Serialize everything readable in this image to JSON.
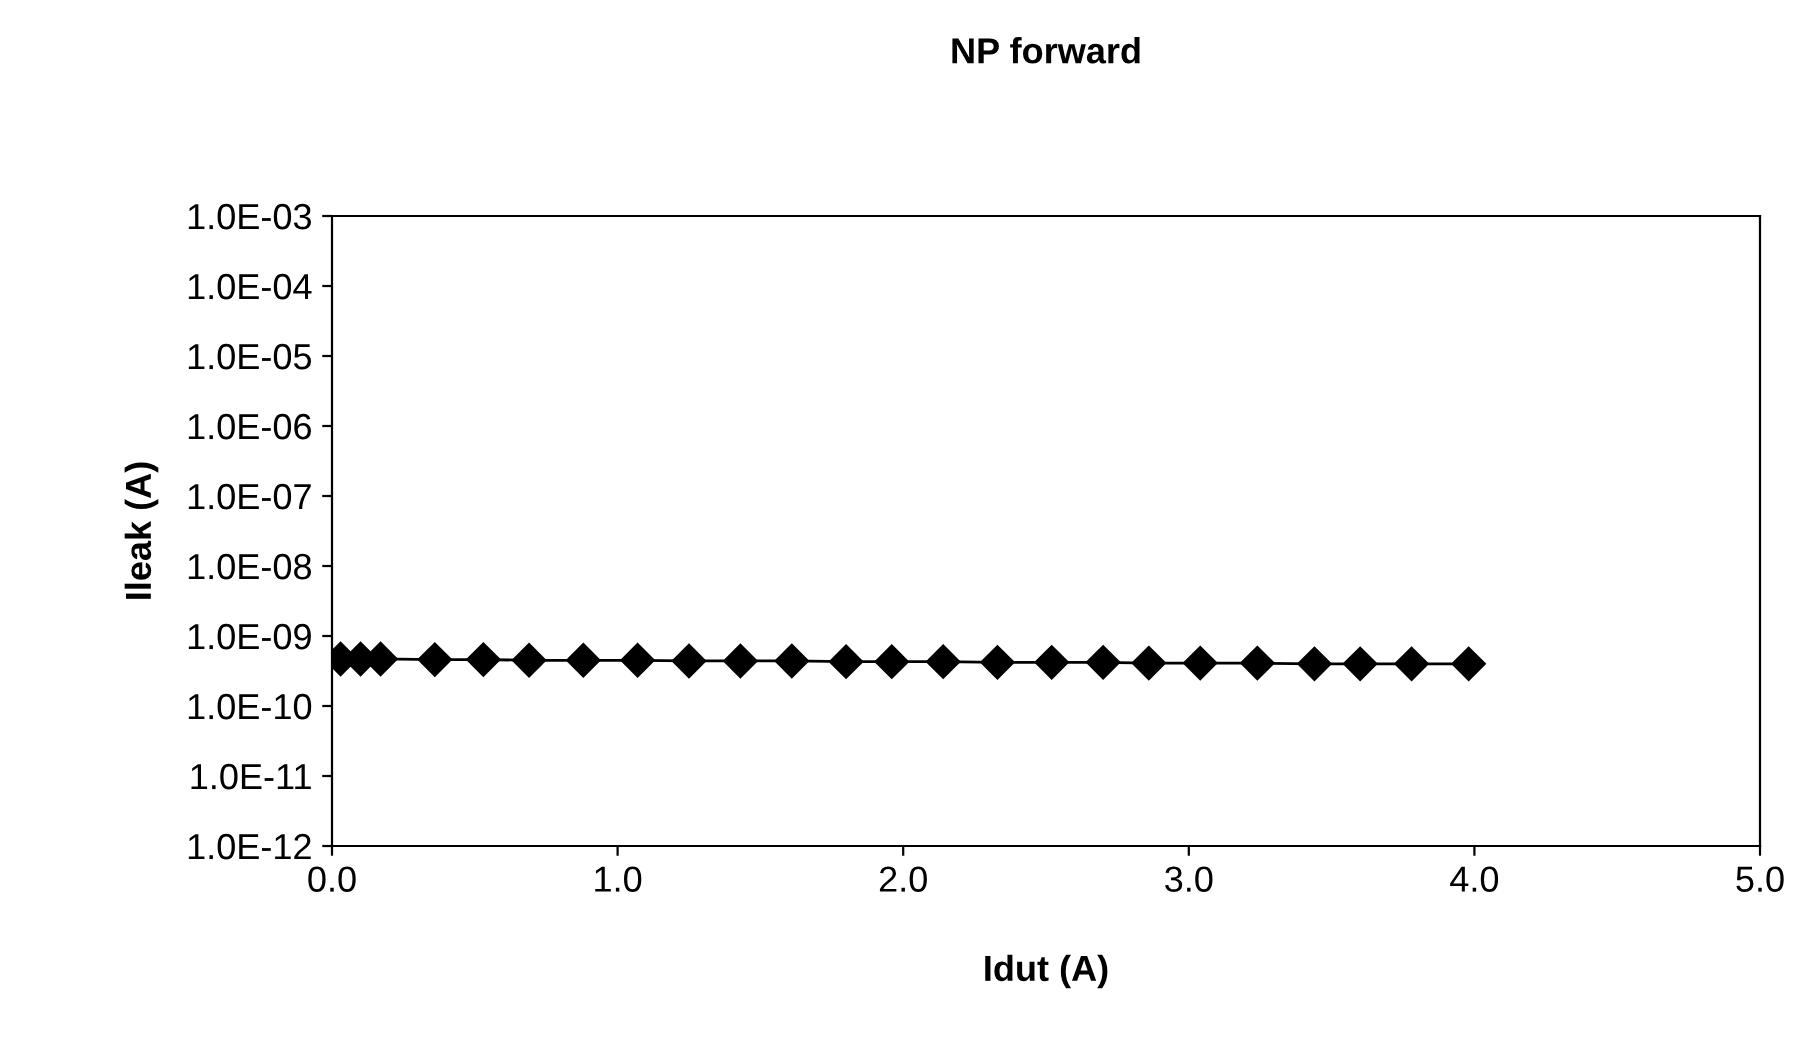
{
  "chart_data": {
    "type": "line",
    "title": "NP forward",
    "xlabel": "Idut (A)",
    "ylabel": "Ileak (A)",
    "x": [
      0.03,
      0.1,
      0.17,
      0.36,
      0.53,
      0.69,
      0.88,
      1.07,
      1.25,
      1.43,
      1.61,
      1.8,
      1.96,
      2.14,
      2.33,
      2.52,
      2.7,
      2.86,
      3.04,
      3.24,
      3.44,
      3.6,
      3.78,
      3.98
    ],
    "series": [
      {
        "color": "#000000",
        "values": [
          4.7e-10,
          4.7e-10,
          4.7e-10,
          4.6e-10,
          4.6e-10,
          4.5e-10,
          4.5e-10,
          4.5e-10,
          4.4e-10,
          4.4e-10,
          4.4e-10,
          4.3e-10,
          4.3e-10,
          4.3e-10,
          4.2e-10,
          4.2e-10,
          4.2e-10,
          4.1e-10,
          4.1e-10,
          4.1e-10,
          4e-10,
          4e-10,
          4e-10,
          4e-10
        ]
      }
    ],
    "log": "y",
    "marker": "diamond",
    "line_style": "solid",
    "grid": false,
    "legend": false,
    "xlim": [
      0,
      5
    ],
    "xticks": [
      {
        "value": 0,
        "label": "0.0"
      },
      {
        "value": 1,
        "label": "1.0"
      },
      {
        "value": 2,
        "label": "2.0"
      },
      {
        "value": 3,
        "label": "3.0"
      },
      {
        "value": 4,
        "label": "4.0"
      },
      {
        "value": 5,
        "label": "5.0"
      }
    ],
    "ylim": [
      1e-12,
      0.001
    ],
    "yticks": [
      {
        "value": 1e-12,
        "label": "1.0E-12"
      },
      {
        "value": 1e-11,
        "label": "1.0E-11"
      },
      {
        "value": 1e-10,
        "label": "1.0E-10"
      },
      {
        "value": 1e-09,
        "label": "1.0E-09"
      },
      {
        "value": 1e-08,
        "label": "1.0E-08"
      },
      {
        "value": 1e-07,
        "label": "1.0E-07"
      },
      {
        "value": 1e-06,
        "label": "1.0E-06"
      },
      {
        "value": 1e-05,
        "label": "1.0E-05"
      },
      {
        "value": 0.0001,
        "label": "1.0E-04"
      },
      {
        "value": 0.001,
        "label": "1.0E-03"
      }
    ]
  }
}
